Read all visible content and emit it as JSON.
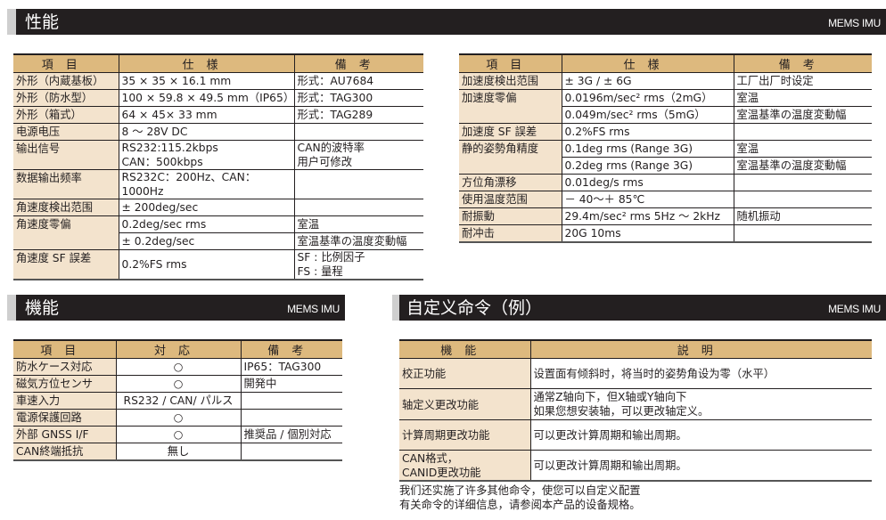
{
  "sections": {
    "performance": {
      "title": "性能",
      "tag": "MEMS IMU"
    },
    "functions": {
      "title": "機能",
      "tag": "MEMS IMU"
    },
    "custom": {
      "title": "自定义命令（例）",
      "tag": "MEMS IMU"
    }
  },
  "colors": {
    "bar": "#231f20",
    "header": "#ddb97e",
    "label_bg": "#f3e3cd"
  },
  "table1": {
    "headers": [
      "項目",
      "仕様",
      "備考"
    ],
    "items": [
      {
        "label": "外形（内蔵基板）",
        "rows": [
          [
            "35 ×  35 ×  16.1 mm",
            "形式：AU7684"
          ]
        ]
      },
      {
        "label": "外形（防水型）",
        "rows": [
          [
            "100 ×  59.8 ×  49.5 mm（IP65）",
            "形式：TAG300"
          ]
        ]
      },
      {
        "label": "外形（箱式）",
        "rows": [
          [
            "64 ×  45×  33 mm",
            "形式：TAG289"
          ]
        ]
      },
      {
        "label": "电源电压",
        "rows": [
          [
            "8 ～ 28V DC",
            ""
          ]
        ]
      },
      {
        "label": "输出信号",
        "rows": [
          [
            "RS232:115.2kbps\nCAN：500kbps",
            "CAN的波特率\n用户可修改"
          ]
        ]
      },
      {
        "label": "数据输出频率",
        "rows": [
          [
            "RS232C：200Hz、CAN：1000Hz",
            ""
          ]
        ]
      },
      {
        "label": "角速度検出范围",
        "rows": [
          [
            "±  200deg/sec",
            ""
          ]
        ]
      },
      {
        "label": "角速度零偏",
        "rows": [
          [
            "0.2deg/sec rms",
            "室温"
          ],
          [
            "±  0.2deg/sec",
            "室温基準の温度変動幅"
          ]
        ]
      },
      {
        "label": "角速度 SF 誤差",
        "rows": [
          [
            "0.2%FS rms",
            "SF : 比例因子\nFS : 量程"
          ]
        ]
      }
    ]
  },
  "table2": {
    "headers": [
      "項目",
      "仕様",
      "備考"
    ],
    "items": [
      {
        "label": "加速度検出范围",
        "rows": [
          [
            "±  3G / ±  6G",
            "工厂出厂时设定"
          ]
        ]
      },
      {
        "label": "加速度零偏",
        "rows": [
          [
            "0.0196m/sec² rms（2mG）",
            "室温"
          ],
          [
            "0.049m/sec² rms（5mG）",
            "室温基準の温度変動幅"
          ]
        ]
      },
      {
        "label": "加速度 SF 誤差",
        "rows": [
          [
            "0.2%FS rms",
            ""
          ]
        ]
      },
      {
        "label": "静的姿勢角精度",
        "rows": [
          [
            "0.1deg rms (Range 3G)",
            "室温"
          ],
          [
            "0.2deg rms (Range 3G)",
            "室温基準の温度変動幅"
          ]
        ]
      },
      {
        "label": "方位角漂移",
        "rows": [
          [
            "0.01deg/s rms",
            ""
          ]
        ]
      },
      {
        "label": "使用温度范围",
        "rows": [
          [
            "－ 40～＋ 85℃",
            ""
          ]
        ]
      },
      {
        "label": "耐振動",
        "rows": [
          [
            "29.4m/sec² rms 5Hz ～ 2kHz",
            "随机振动"
          ]
        ]
      },
      {
        "label": "耐冲击",
        "rows": [
          [
            "20G 10ms",
            ""
          ]
        ]
      }
    ]
  },
  "table3": {
    "headers": [
      "項目",
      "対応",
      "備考"
    ],
    "items": [
      {
        "label": "防水ケース対応",
        "rows": [
          [
            "○",
            "IP65：TAG300"
          ]
        ]
      },
      {
        "label": "磁気方位センサ",
        "rows": [
          [
            "○",
            "開発中"
          ]
        ]
      },
      {
        "label": "車速入力",
        "rows": [
          [
            "RS232 / CAN/ パルス",
            ""
          ]
        ]
      },
      {
        "label": "電源保護回路",
        "rows": [
          [
            "○",
            ""
          ]
        ]
      },
      {
        "label": "外部 GNSS I/F",
        "rows": [
          [
            "○",
            "推奨品 / 個別対応"
          ]
        ]
      },
      {
        "label": "CAN終端抵抗",
        "rows": [
          [
            "無し",
            ""
          ]
        ]
      }
    ]
  },
  "table4": {
    "headers": [
      "機能",
      "説明"
    ],
    "items": [
      {
        "label": "校正功能",
        "rows": [
          [
            "设置面有倾斜时，将当时的姿势角设为零（水平）"
          ]
        ]
      },
      {
        "label": "轴定义更改功能",
        "rows": [
          [
            "通常Z轴向下，但X轴或Y轴向下\n如果您想安装轴，可以更改轴定义。"
          ]
        ]
      },
      {
        "label": "计算周期更改功能",
        "rows": [
          [
            "可以更改计算周期和输出周期。"
          ]
        ]
      },
      {
        "label": "CAN格式，\nCANID更改功能",
        "rows": [
          [
            "可以更改计算周期和输出周期。"
          ]
        ]
      }
    ]
  },
  "footnote": "我们还实施了许多其他命令，使您可以自定义配置\n有关命令的详细信息，请参阅本产品的设备规格。"
}
